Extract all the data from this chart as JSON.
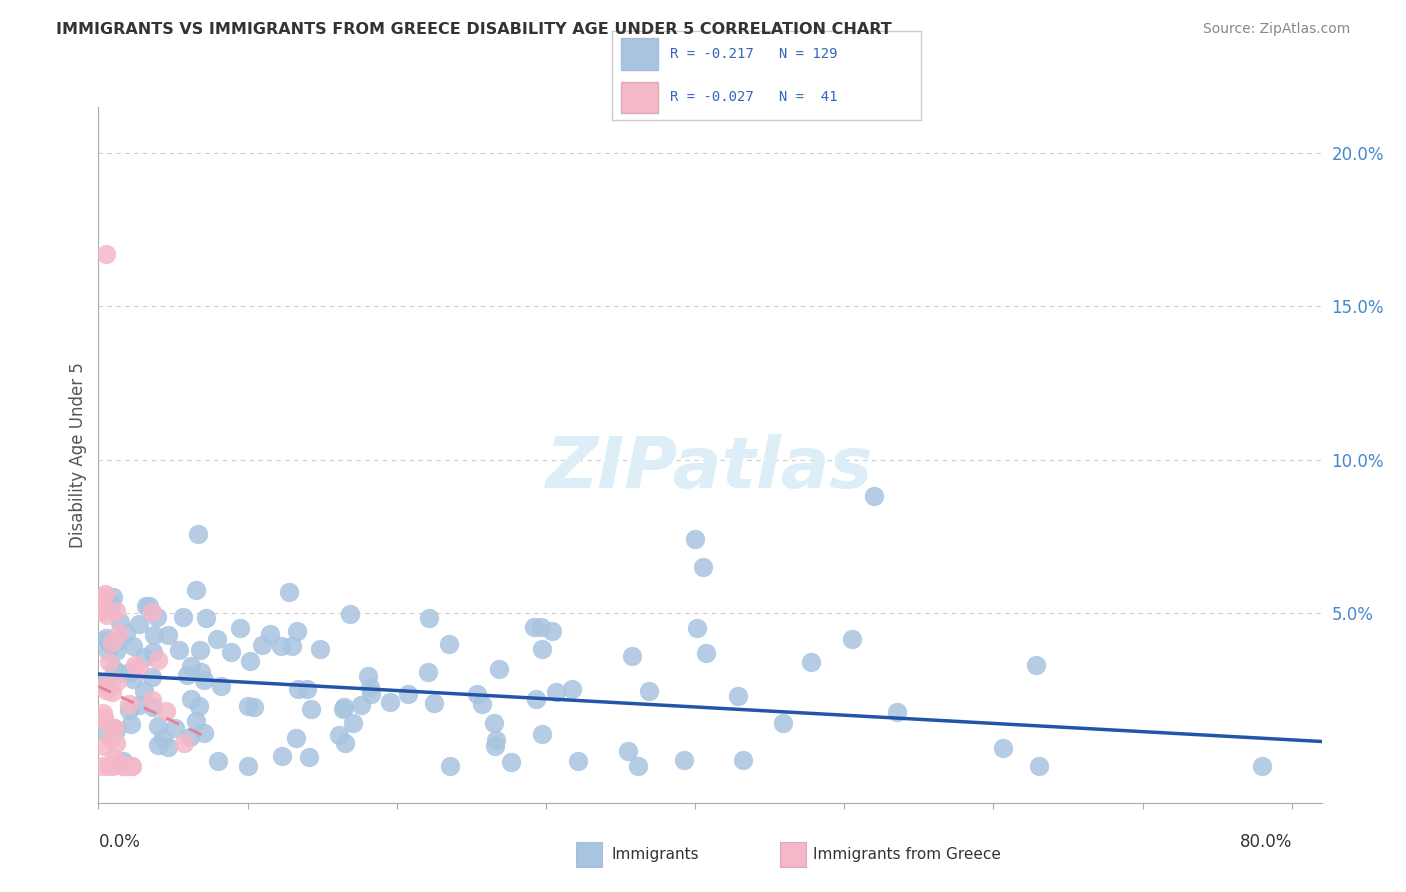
{
  "title": "IMMIGRANTS VS IMMIGRANTS FROM GREECE DISABILITY AGE UNDER 5 CORRELATION CHART",
  "source": "Source: ZipAtlas.com",
  "ylabel": "Disability Age Under 5",
  "yticks": [
    0.0,
    0.05,
    0.1,
    0.15,
    0.2
  ],
  "ytick_labels": [
    "",
    "5.0%",
    "10.0%",
    "15.0%",
    "20.0%"
  ],
  "xlim": [
    0.0,
    0.82
  ],
  "ylim": [
    -0.012,
    0.215
  ],
  "legend_r1": "-0.217",
  "legend_n1": "129",
  "legend_r2": "-0.027",
  "legend_n2": " 41",
  "blue_color": "#a8c4e0",
  "pink_color": "#f4b8c8",
  "blue_line_color": "#2255aa",
  "pink_line_color": "#e8809a",
  "title_color": "#333333",
  "axis_color": "#aaaaaa",
  "grid_color": "#cccccc",
  "watermark_color": "#ddeef8",
  "blue_line_y_start": 0.03,
  "blue_line_y_end": 0.008,
  "pink_line_y_start": 0.026,
  "pink_line_y_end": 0.01,
  "pink_line_x_end": 0.07
}
